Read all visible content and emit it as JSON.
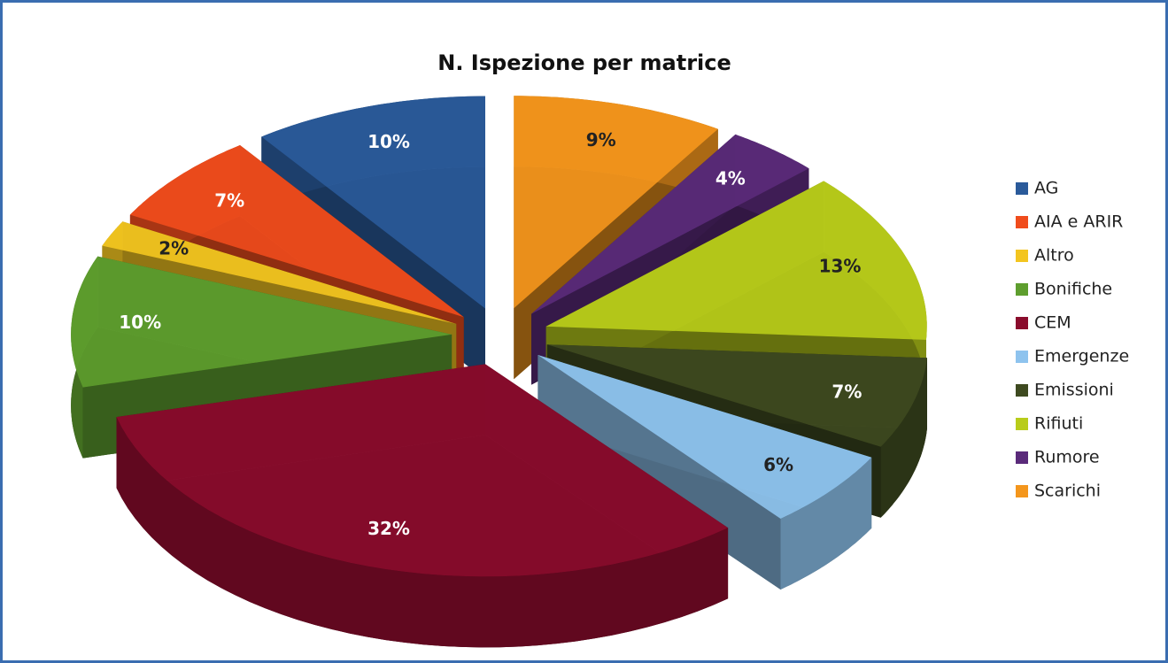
{
  "chart_data": {
    "type": "pie",
    "title": "N. Ispezione per matrice",
    "categories": [
      "AG",
      "AIA e ARIR",
      "Altro",
      "Bonifiche",
      "CEM",
      "Emergenze",
      "Emissioni",
      "Rifiuti",
      "Rumore",
      "Scarichi"
    ],
    "values": [
      10,
      7,
      2,
      10,
      32,
      6,
      7,
      13,
      4,
      9
    ],
    "value_labels": [
      "10%",
      "7%",
      "2%",
      "10%",
      "32%",
      "6%",
      "7%",
      "13%",
      "4%",
      "9%"
    ],
    "colors": [
      "#2a5a9a",
      "#f04c1c",
      "#f3c520",
      "#5e9e2e",
      "#8a0c2c",
      "#8ec3ee",
      "#3e4a20",
      "#b8cc1a",
      "#5a2a7a",
      "#f4961c"
    ],
    "legend": "right"
  }
}
